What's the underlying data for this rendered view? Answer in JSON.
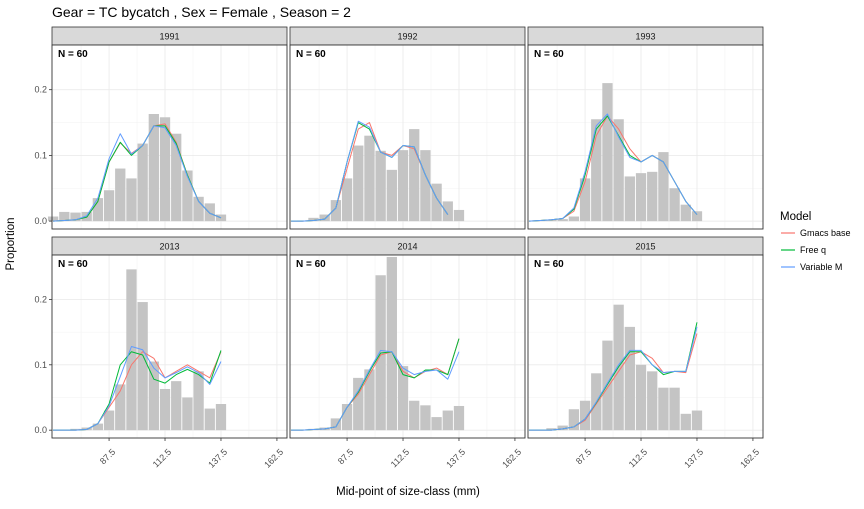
{
  "title": "Gear = TC bycatch , Sex = Female , Season = 2",
  "xlabel": "Mid-point of size-class (mm)",
  "ylabel": "Proportion",
  "legend": {
    "title": "Model",
    "items": [
      {
        "name": "Gmacs base",
        "color": "#F8766D"
      },
      {
        "name": "Free q",
        "color": "#00BA38"
      },
      {
        "name": "Variable M",
        "color": "#619CFF"
      }
    ]
  },
  "colors": {
    "bar": "#c4c4c4",
    "strip": "#d9d9d9",
    "grid": "#ebebeb"
  },
  "chart_data": {
    "type": "bar",
    "xticks": [
      87.5,
      112.5,
      137.5,
      162.5
    ],
    "xlim": [
      62,
      167
    ],
    "yticks": [
      0.0,
      0.1,
      0.2
    ],
    "ytick_labels": [
      "0.0",
      "0.1",
      "0.2"
    ],
    "ylim": [
      -0.012,
      0.268
    ],
    "categories": [
      62.5,
      67.5,
      72.5,
      77.5,
      82.5,
      87.5,
      92.5,
      97.5,
      102.5,
      107.5,
      112.5,
      117.5,
      122.5,
      127.5,
      132.5,
      137.5,
      142.5
    ],
    "panels": [
      {
        "label": "1991",
        "n_label": "N = 60",
        "observed": [
          0.007,
          0.014,
          0.013,
          0.014,
          0.035,
          0.047,
          0.08,
          0.065,
          0.118,
          0.163,
          0.158,
          0.133,
          0.077,
          0.037,
          0.027,
          0.01,
          0
        ],
        "series": [
          {
            "name": "Gmacs base",
            "values": [
              0,
              0.001,
              0.002,
              0.006,
              0.03,
              0.09,
              0.119,
              0.103,
              0.115,
              0.145,
              0.148,
              0.12,
              0.07,
              0.03,
              0.012,
              0.005,
              null
            ]
          },
          {
            "name": "Free q",
            "values": [
              0,
              0.001,
              0.002,
              0.006,
              0.03,
              0.09,
              0.12,
              0.1,
              0.115,
              0.145,
              0.145,
              0.118,
              0.07,
              0.03,
              0.012,
              0.005,
              null
            ]
          },
          {
            "name": "Variable M",
            "values": [
              0,
              0.001,
              0.002,
              0.008,
              0.035,
              0.095,
              0.133,
              0.102,
              0.115,
              0.145,
              0.142,
              0.115,
              0.068,
              0.03,
              0.012,
              0.005,
              null
            ]
          }
        ]
      },
      {
        "label": "1992",
        "n_label": "N = 60",
        "observed": [
          0,
          0.001,
          0.005,
          0.01,
          0.032,
          0.065,
          0.115,
          0.13,
          0.107,
          0.078,
          0.108,
          0.14,
          0.108,
          0.057,
          0.03,
          0.017,
          0
        ],
        "series": [
          {
            "name": "Gmacs base",
            "values": [
              0,
              0,
              0.001,
              0.003,
              0.02,
              0.08,
              0.14,
              0.15,
              0.105,
              0.1,
              0.115,
              0.11,
              0.07,
              0.035,
              0.01,
              null,
              null
            ]
          },
          {
            "name": "Free q",
            "values": [
              0,
              0,
              0.001,
              0.003,
              0.02,
              0.09,
              0.15,
              0.14,
              0.105,
              0.097,
              0.115,
              0.113,
              0.07,
              0.035,
              0.01,
              null,
              null
            ]
          },
          {
            "name": "Variable M",
            "values": [
              0,
              0,
              0.001,
              0.003,
              0.02,
              0.09,
              0.152,
              0.143,
              0.105,
              0.097,
              0.115,
              0.113,
              0.07,
              0.035,
              0.01,
              null,
              null
            ]
          }
        ]
      },
      {
        "label": "1993",
        "n_label": "N = 60",
        "observed": [
          0,
          0.001,
          0.002,
          0.003,
          0.007,
          0.065,
          0.155,
          0.21,
          0.155,
          0.068,
          0.073,
          0.075,
          0.105,
          0.05,
          0.025,
          0.015,
          0
        ],
        "series": [
          {
            "name": "Gmacs base",
            "values": [
              0,
              0.001,
              0.002,
              0.004,
              0.015,
              0.06,
              0.13,
              0.16,
              0.14,
              0.11,
              0.09,
              0.1,
              0.09,
              0.06,
              0.03,
              0.01,
              null
            ]
          },
          {
            "name": "Free q",
            "values": [
              0,
              0.001,
              0.002,
              0.004,
              0.018,
              0.07,
              0.14,
              0.16,
              0.13,
              0.1,
              0.09,
              0.1,
              0.09,
              0.06,
              0.03,
              0.01,
              null
            ]
          },
          {
            "name": "Variable M",
            "values": [
              0,
              0.001,
              0.002,
              0.004,
              0.02,
              0.075,
              0.145,
              0.163,
              0.128,
              0.097,
              0.09,
              0.1,
              0.09,
              0.06,
              0.03,
              0.01,
              null
            ]
          }
        ]
      },
      {
        "label": "2013",
        "n_label": "N = 60",
        "observed": [
          0,
          0,
          0.002,
          0.004,
          0.01,
          0.03,
          0.07,
          0.246,
          0.196,
          0.105,
          0.063,
          0.075,
          0.05,
          0.09,
          0.033,
          0.04,
          0
        ],
        "series": [
          {
            "name": "Gmacs base",
            "values": [
              0,
              0,
              0,
              0.001,
              0.01,
              0.035,
              0.06,
              0.1,
              0.12,
              0.11,
              0.08,
              0.09,
              0.1,
              0.09,
              0.08,
              0.12,
              null
            ]
          },
          {
            "name": "Free q",
            "values": [
              0,
              0,
              0,
              0.001,
              0.01,
              0.04,
              0.1,
              0.12,
              0.115,
              0.078,
              0.072,
              0.085,
              0.093,
              0.085,
              0.072,
              0.122,
              null
            ]
          },
          {
            "name": "Variable M",
            "values": [
              0,
              0,
              0,
              0.001,
              0.01,
              0.037,
              0.082,
              0.128,
              0.123,
              0.095,
              0.08,
              0.088,
              0.097,
              0.088,
              0.07,
              0.105,
              null
            ]
          }
        ]
      },
      {
        "label": "2014",
        "n_label": "N = 60",
        "observed": [
          0,
          0,
          0.002,
          0.004,
          0.018,
          0.04,
          0.08,
          0.093,
          0.237,
          0.265,
          0.098,
          0.045,
          0.038,
          0.02,
          0.03,
          0.037,
          0
        ],
        "series": [
          {
            "name": "Gmacs base",
            "values": [
              0,
              0,
              0.001,
              0.002,
              0.005,
              0.035,
              0.055,
              0.085,
              0.115,
              0.12,
              0.09,
              0.08,
              0.09,
              0.095,
              0.085,
              0.14,
              null
            ]
          },
          {
            "name": "Free q",
            "values": [
              0,
              0,
              0.001,
              0.002,
              0.005,
              0.035,
              0.058,
              0.09,
              0.118,
              0.12,
              0.085,
              0.08,
              0.092,
              0.092,
              0.085,
              0.14,
              null
            ]
          },
          {
            "name": "Variable M",
            "values": [
              0,
              0,
              0.001,
              0.002,
              0.005,
              0.035,
              0.06,
              0.092,
              0.122,
              0.12,
              0.095,
              0.085,
              0.09,
              0.092,
              0.078,
              0.12,
              null
            ]
          }
        ]
      },
      {
        "label": "2015",
        "n_label": "N = 60",
        "observed": [
          0,
          0.001,
          0.003,
          0.007,
          0.032,
          0.045,
          0.087,
          0.137,
          0.192,
          0.158,
          0.1,
          0.09,
          0.065,
          0.065,
          0.025,
          0.03,
          0
        ],
        "series": [
          {
            "name": "Gmacs base",
            "values": [
              0,
              0,
              0,
              0.002,
              0.005,
              0.015,
              0.04,
              0.065,
              0.09,
              0.115,
              0.12,
              0.11,
              0.088,
              0.09,
              0.088,
              0.148,
              null
            ]
          },
          {
            "name": "Free q",
            "values": [
              0,
              0,
              0,
              0.002,
              0.005,
              0.017,
              0.042,
              0.07,
              0.097,
              0.12,
              0.12,
              0.1,
              0.085,
              0.09,
              0.09,
              0.165,
              null
            ]
          },
          {
            "name": "Variable M",
            "values": [
              0,
              0,
              0,
              0.002,
              0.005,
              0.017,
              0.043,
              0.072,
              0.1,
              0.122,
              0.122,
              0.1,
              0.088,
              0.09,
              0.09,
              0.158,
              null
            ]
          }
        ]
      }
    ]
  }
}
